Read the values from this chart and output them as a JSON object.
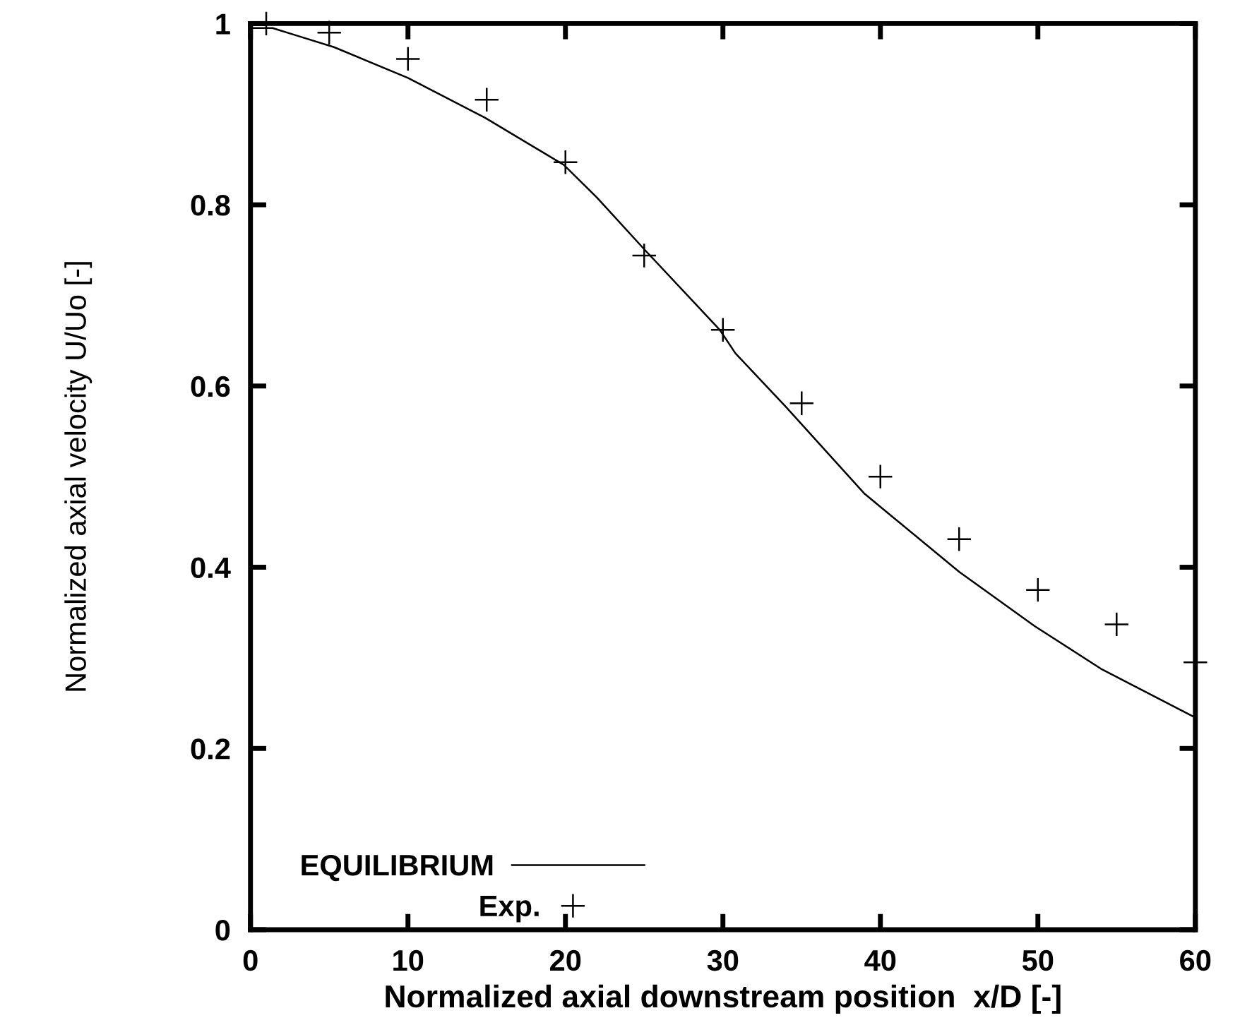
{
  "chart_data": {
    "type": "line",
    "xlabel": "Normalized axial downstream position  x/D [-]",
    "ylabel": "Normalized axial velocity U/Uo [-]",
    "xlim": [
      0,
      60
    ],
    "ylim": [
      0,
      1
    ],
    "xticks": [
      0,
      10,
      20,
      30,
      40,
      50,
      60
    ],
    "yticks": [
      0,
      0.2,
      0.4,
      0.6,
      0.8,
      1
    ],
    "grid": false,
    "legend": "bottom",
    "series": [
      {
        "name": "EQUILIBRIUM",
        "color": "#000000",
        "marker": "none",
        "line_style": "solid",
        "x": [
          0,
          1.4,
          2.9,
          5.3,
          10,
          14.9,
          19.9,
          22,
          25,
          29.8,
          30.8,
          34,
          39,
          45,
          49.8,
          54,
          60
        ],
        "values": [
          0.995,
          0.995,
          0.987,
          0.974,
          0.94,
          0.896,
          0.844,
          0.808,
          0.751,
          0.662,
          0.636,
          0.577,
          0.481,
          0.395,
          0.335,
          0.288,
          0.234
        ]
      },
      {
        "name": "Exp.",
        "type": "scatter",
        "color": "#000000",
        "marker": "cross",
        "x": [
          1,
          5,
          10,
          15,
          20,
          25,
          30,
          35,
          40,
          45,
          50,
          55,
          60
        ],
        "values": [
          1.0,
          0.99,
          0.961,
          0.916,
          0.847,
          0.744,
          0.662,
          0.581,
          0.5,
          0.431,
          0.375,
          0.337,
          0.295
        ]
      }
    ]
  }
}
